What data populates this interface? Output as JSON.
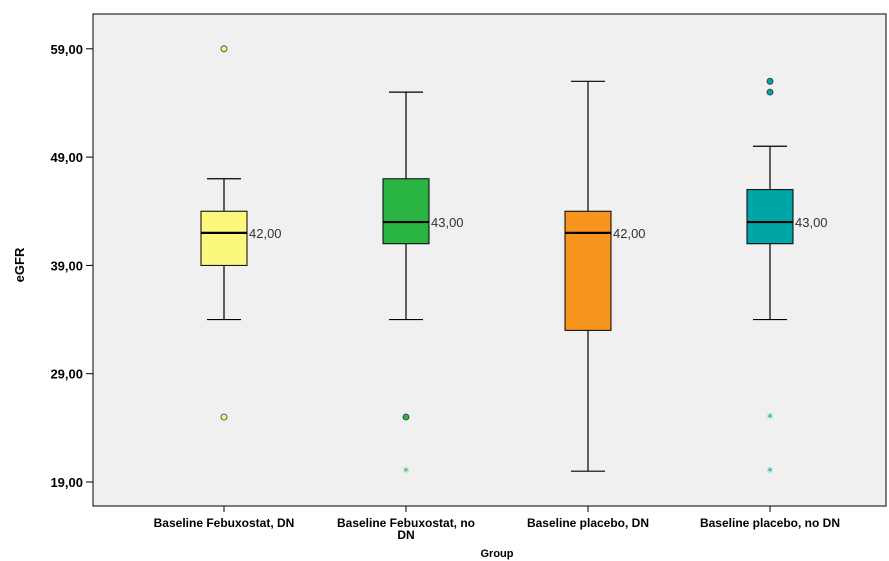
{
  "chart_data": {
    "type": "boxplot",
    "xlabel": "Group",
    "ylabel": "eGFR",
    "ylim": [
      17.0,
      63.0
    ],
    "yticks": [
      19,
      29,
      39,
      49,
      59
    ],
    "ytick_labels": [
      "19,00",
      "29,00",
      "39,00",
      "49,00",
      "59,00"
    ],
    "grid": false,
    "categories": [
      {
        "label_lines": [
          "Baseline Febuxostat, DN"
        ],
        "color": "#fcf87d",
        "whisker_low": 34,
        "q1": 39,
        "median": 42,
        "q3": 44,
        "whisker_high": 47,
        "median_label": "42,00",
        "outliers": [
          59,
          25
        ],
        "extremes": []
      },
      {
        "label_lines": [
          "Baseline Febuxostat, no",
          "DN"
        ],
        "color": "#2ab441",
        "whisker_low": 34,
        "q1": 41,
        "median": 43,
        "q3": 47,
        "whisker_high": 55,
        "median_label": "43,00",
        "outliers": [
          25
        ],
        "extremes": [
          20
        ]
      },
      {
        "label_lines": [
          "Baseline placebo, DN"
        ],
        "color": "#f7941d",
        "whisker_low": 20,
        "q1": 33,
        "median": 42,
        "q3": 44,
        "whisker_high": 56,
        "median_label": "42,00",
        "outliers": [],
        "extremes": []
      },
      {
        "label_lines": [
          "Baseline placebo, no DN"
        ],
        "color": "#00a6a6",
        "whisker_low": 34,
        "q1": 41,
        "median": 43,
        "q3": 46,
        "whisker_high": 50,
        "median_label": "43,00",
        "outliers": [
          56,
          55
        ],
        "extremes": [
          25,
          20
        ]
      }
    ]
  }
}
